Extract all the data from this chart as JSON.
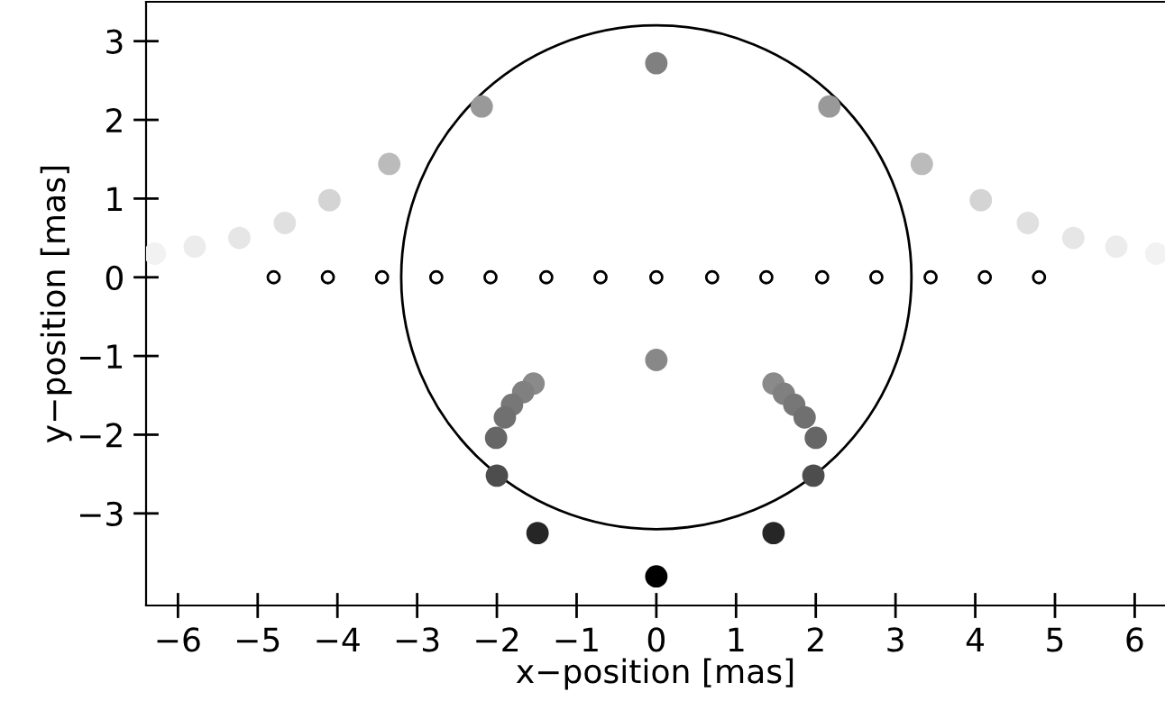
{
  "chart_data": {
    "type": "scatter",
    "xlabel": "x−position [mas]",
    "ylabel": "y−position [mas]",
    "xlim": [
      -6.4,
      6.38
    ],
    "ylim": [
      -4.17,
      3.5
    ],
    "xticks": [
      -6,
      -5,
      -4,
      -3,
      -2,
      -1,
      0,
      1,
      2,
      3,
      4,
      5,
      6
    ],
    "yticks": [
      -3,
      -2,
      -1,
      0,
      1,
      2,
      3
    ],
    "grid": false,
    "legend": false,
    "marker": "circle",
    "series": [
      {
        "color": "#ffffff",
        "x": [
          -4.8,
          -4.12,
          -3.44,
          -2.76,
          -2.08,
          -1.38,
          -0.7,
          0,
          0.7,
          1.38,
          2.08,
          2.76,
          3.44,
          4.12,
          4.8
        ],
        "values": [
          0,
          0,
          0,
          0,
          0,
          0,
          0,
          0,
          0,
          0,
          0,
          0,
          0,
          0,
          0
        ]
      },
      {
        "color": "#808080",
        "x": [
          -6.29,
          -5.79,
          -5.23,
          -4.66,
          -4.1,
          -3.35,
          -2.19,
          0,
          2.17,
          3.33,
          4.07,
          4.66,
          5.23,
          5.77,
          6.27,
          0,
          -1.54,
          -1.67,
          -1.81,
          -1.9,
          -2.01,
          -2.0,
          -1.49,
          0,
          1.47,
          1.6,
          1.73,
          1.86,
          2.0,
          1.97,
          1.47
        ],
        "values": [
          0.3,
          0.39,
          0.5,
          0.69,
          0.98,
          1.44,
          2.17,
          2.72,
          2.17,
          1.44,
          0.98,
          0.69,
          0.5,
          0.39,
          0.3,
          -1.05,
          -1.35,
          -1.46,
          -1.62,
          -1.78,
          -2.04,
          -2.52,
          -3.25,
          -3.8,
          -1.35,
          -1.48,
          -1.62,
          -1.78,
          -2.04,
          -2.52,
          -3.25
        ],
        "colors": [
          "#f2f2f2",
          "#ececec",
          "#e6e6e6",
          "#e0e0e0",
          "#d4d4d4",
          "#bbbbbb",
          "#999999",
          "#808080",
          "#999999",
          "#bbbbbb",
          "#d4d4d4",
          "#e0e0e0",
          "#e6e6e6",
          "#ececec",
          "#f2f2f2",
          "#888888",
          "#8a8a8a",
          "#808080",
          "#777777",
          "#707070",
          "#666666",
          "#4d4d4d",
          "#262626",
          "#000000",
          "#8a8a8a",
          "#808080",
          "#777777",
          "#707070",
          "#666666",
          "#4d4d4d",
          "#262626"
        ]
      }
    ]
  }
}
